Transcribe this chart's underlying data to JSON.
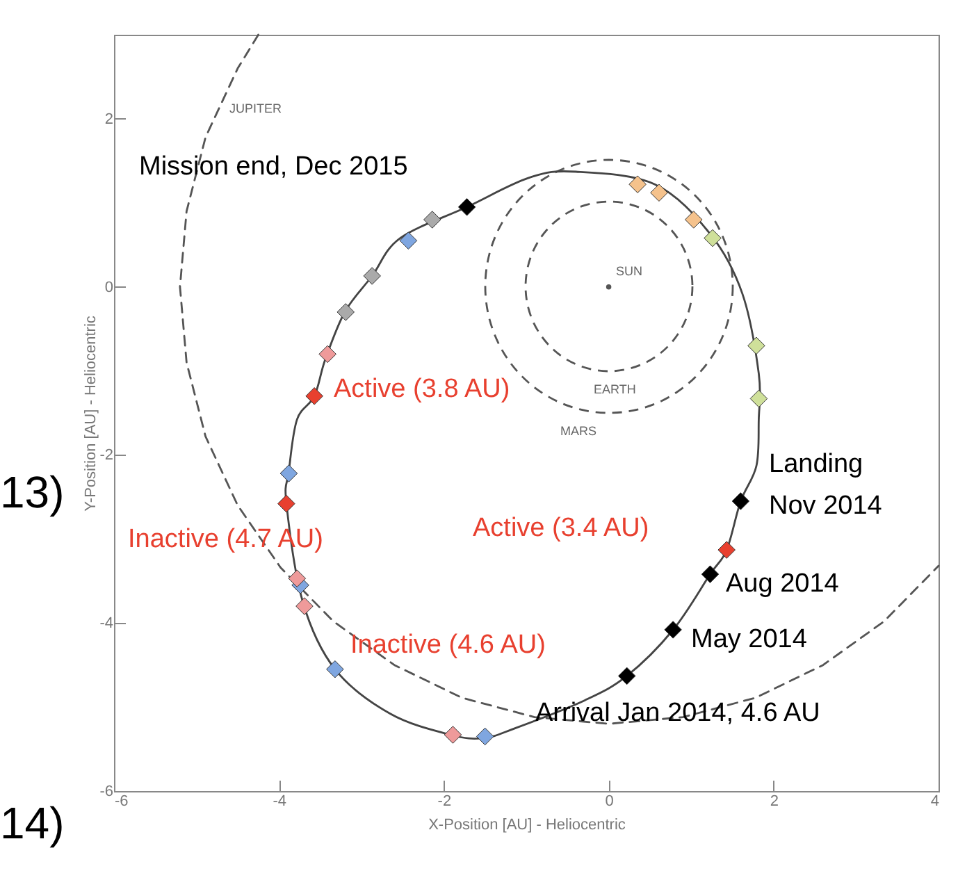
{
  "chart_data": {
    "type": "line",
    "xlabel": "X-Position [AU] - Heliocentric",
    "ylabel": "Y-Position [AU] - Heliocentric",
    "xlim": [
      -6,
      4
    ],
    "ylim": [
      -6,
      3
    ],
    "xticks": [
      -6,
      -4,
      -2,
      0,
      2,
      4
    ],
    "yticks": [
      -6,
      -4,
      -2,
      0,
      2
    ],
    "grid": false,
    "series": [
      {
        "type": "line",
        "color": "#555555",
        "line_style": "dashed",
        "x": [
          -4.25,
          -4.5,
          -4.89,
          -5.12,
          -5.2,
          -5.12,
          -4.89,
          -4.5,
          -3.98,
          -3.34,
          -2.6,
          -1.78,
          -0.9,
          0,
          0.9,
          1.78,
          2.6,
          3.34,
          4.0
        ],
        "values": [
          3.0,
          2.6,
          1.78,
          0.9,
          0,
          -0.9,
          -1.78,
          -2.6,
          -3.34,
          -3.98,
          -4.5,
          -4.89,
          -5.12,
          -5.2,
          -5.12,
          -4.89,
          -4.5,
          -3.98,
          -3.32
        ]
      },
      {
        "type": "scatter",
        "marker": "circle",
        "color": "#555555",
        "x": [
          0
        ],
        "values": [
          0
        ]
      },
      {
        "type": "scatter",
        "marker": "diamond",
        "color": "#f5c28c",
        "x": [
          0.35,
          0.61,
          1.03
        ],
        "values": [
          1.22,
          1.12,
          0.8
        ]
      },
      {
        "type": "scatter",
        "marker": "diamond",
        "color": "#cfe09a",
        "x": [
          1.26,
          1.79,
          1.82
        ],
        "values": [
          0.58,
          -0.7,
          -1.33
        ]
      },
      {
        "type": "scatter",
        "marker": "diamond",
        "color": "#7fa6e0",
        "x": [
          -2.43,
          -3.88,
          -3.74,
          -3.32,
          -1.5
        ],
        "values": [
          0.55,
          -2.22,
          -3.55,
          -4.55,
          -5.35
        ]
      },
      {
        "type": "scatter",
        "marker": "diamond",
        "color": "#aaaaaa",
        "x": [
          -2.14,
          -2.87,
          -3.19
        ],
        "values": [
          0.8,
          0.13,
          -0.3
        ]
      },
      {
        "type": "scatter",
        "marker": "diamond",
        "color": "#ef9a9a",
        "x": [
          -3.41,
          -3.78,
          -3.69,
          -1.89
        ],
        "values": [
          -0.8,
          -3.47,
          -3.8,
          -5.33
        ]
      },
      {
        "type": "scatter",
        "marker": "diamond",
        "color": "#e8402f",
        "x": [
          -3.57,
          -3.91,
          1.43
        ],
        "values": [
          -1.3,
          -2.58,
          -3.13
        ]
      },
      {
        "type": "scatter",
        "marker": "diamond",
        "color": "#000000",
        "x": [
          -1.72,
          1.6,
          1.23,
          0.78,
          0.22
        ],
        "values": [
          0.95,
          -2.55,
          -3.42,
          -4.08,
          -4.63
        ]
      }
    ],
    "annotations": [
      "Mission end, Dec 2015",
      "Active  (3.8 AU)",
      "Landing",
      "Nov 2014",
      "Inactive (4.7 AU)",
      "Active  (3.4 AU)",
      "Aug 2014",
      "Inactive (4.6 AU)",
      "May 2014",
      "Arrival Jan 2014, 4.6 AU",
      "JUPITER",
      "SUN",
      "EARTH",
      "MARS",
      "13)",
      "14)"
    ]
  }
}
